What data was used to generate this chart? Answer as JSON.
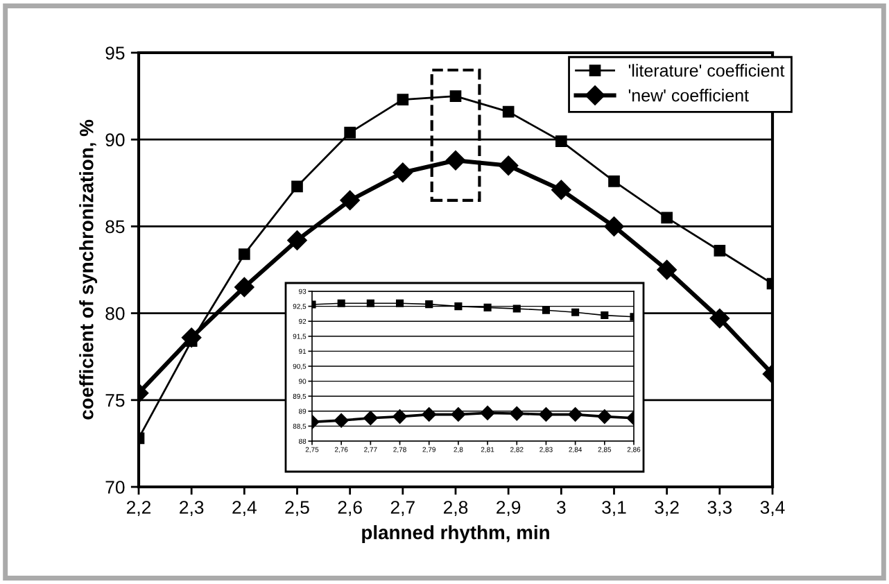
{
  "chart_data": [
    {
      "type": "line",
      "xlabel": "planned rhythm, min",
      "ylabel": "coefficient of synchronization, %",
      "x": [
        2.2,
        2.3,
        2.4,
        2.5,
        2.6,
        2.7,
        2.8,
        2.9,
        3.0,
        3.1,
        3.2,
        3.3,
        3.4
      ],
      "series": [
        {
          "name": "'literature' coefficient",
          "color": "#000000",
          "marker": "square",
          "values": [
            72.8,
            78.4,
            83.4,
            87.3,
            90.4,
            92.3,
            92.5,
            91.6,
            89.9,
            87.6,
            85.5,
            83.6,
            81.7
          ]
        },
        {
          "name": "'new' coefficient",
          "color": "#000000",
          "marker": "diamond",
          "values": [
            75.4,
            78.6,
            81.5,
            84.2,
            86.5,
            88.1,
            88.8,
            88.5,
            87.1,
            85.0,
            82.5,
            79.7,
            76.5
          ]
        }
      ],
      "xlim": [
        2.2,
        3.4
      ],
      "xticks": [
        {
          "value": 2.2,
          "label": "2,2"
        },
        {
          "value": 2.3,
          "label": "2,3"
        },
        {
          "value": 2.4,
          "label": "2,4"
        },
        {
          "value": 2.5,
          "label": "2,5"
        },
        {
          "value": 2.6,
          "label": "2,6"
        },
        {
          "value": 2.7,
          "label": "2,7"
        },
        {
          "value": 2.8,
          "label": "2,8"
        },
        {
          "value": 2.9,
          "label": "2,9"
        },
        {
          "value": 3.0,
          "label": "3"
        },
        {
          "value": 3.1,
          "label": "3,1"
        },
        {
          "value": 3.2,
          "label": "3,2"
        },
        {
          "value": 3.3,
          "label": "3,3"
        },
        {
          "value": 3.4,
          "label": "3,4"
        }
      ],
      "ylim": [
        70,
        95
      ],
      "yticks": [
        70,
        75,
        80,
        85,
        90,
        95
      ],
      "grid": "y",
      "legend": "top right",
      "line_style": "solid"
    },
    {
      "type": "line",
      "x": [
        2.75,
        2.76,
        2.77,
        2.78,
        2.79,
        2.8,
        2.81,
        2.82,
        2.83,
        2.84,
        2.85,
        2.86
      ],
      "series": [
        {
          "color": "#000000",
          "marker": "square",
          "values": [
            92.56,
            92.6,
            92.6,
            92.6,
            92.57,
            92.5,
            92.46,
            92.42,
            92.37,
            92.3,
            92.2,
            92.15
          ]
        },
        {
          "color": "#000000",
          "marker": "diamond",
          "values": [
            88.64,
            88.69,
            88.77,
            88.82,
            88.89,
            88.89,
            88.94,
            88.92,
            88.89,
            88.89,
            88.82,
            88.77
          ]
        }
      ],
      "xlim": [
        2.75,
        2.86
      ],
      "xticks": [
        {
          "value": 2.75,
          "label": "2,75"
        },
        {
          "value": 2.76,
          "label": "2,76"
        },
        {
          "value": 2.77,
          "label": "2,77"
        },
        {
          "value": 2.78,
          "label": "2,78"
        },
        {
          "value": 2.79,
          "label": "2,79"
        },
        {
          "value": 2.8,
          "label": "2,8"
        },
        {
          "value": 2.81,
          "label": "2,81"
        },
        {
          "value": 2.82,
          "label": "2,82"
        },
        {
          "value": 2.83,
          "label": "2,83"
        },
        {
          "value": 2.84,
          "label": "2,84"
        },
        {
          "value": 2.85,
          "label": "2,85"
        },
        {
          "value": 2.86,
          "label": "2,86"
        }
      ],
      "ylim": [
        88,
        93
      ],
      "yticks": [
        88,
        {
          "value": 88.5,
          "label": "88,5"
        },
        89,
        {
          "value": 89.5,
          "label": "89,5"
        },
        90,
        {
          "value": 90.5,
          "label": "90,5"
        },
        91,
        {
          "value": 91.5,
          "label": "91,5"
        },
        92,
        {
          "value": 92.5,
          "label": "92,5"
        },
        93
      ],
      "grid": "y",
      "line_style": "solid"
    }
  ]
}
